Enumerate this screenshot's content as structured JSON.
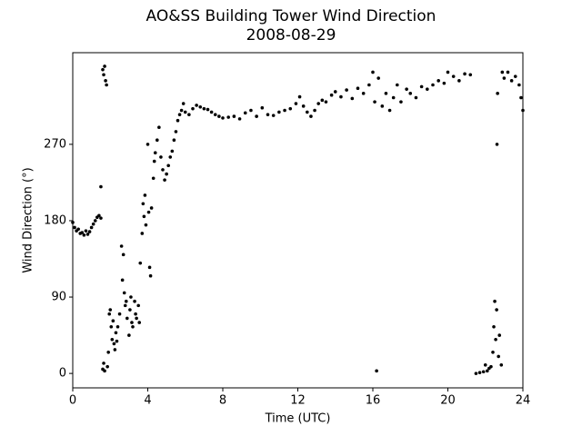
{
  "chart_data": {
    "type": "scatter",
    "title": "AO&SS Building Tower Wind Direction",
    "subtitle": "2008-08-29",
    "x_label": "Time (UTC)",
    "y_label": "Wind Direction (°)",
    "color": "#000000",
    "xlim": [
      0,
      24
    ],
    "xticks": [
      0,
      4,
      8,
      12,
      16,
      20,
      24
    ],
    "ylim": [
      -17,
      378
    ],
    "yticks": [
      0,
      90,
      180,
      270
    ],
    "grid": false,
    "x": [
      0,
      0.1,
      0.2,
      0.3,
      0.4,
      0.5,
      0.6,
      0.7,
      0.8,
      0.9,
      1.0,
      1.1,
      1.2,
      1.3,
      1.4,
      1.5,
      1.5,
      1.6,
      1.65,
      1.7,
      1.75,
      1.8,
      1.6,
      1.65,
      1.7,
      1.85,
      1.9,
      1.95,
      2.0,
      2.05,
      2.1,
      2.15,
      2.2,
      2.25,
      2.3,
      2.35,
      2.4,
      2.5,
      2.6,
      2.65,
      2.7,
      2.75,
      2.8,
      2.85,
      2.9,
      3.0,
      3.05,
      3.1,
      3.15,
      3.2,
      3.3,
      3.35,
      3.4,
      3.5,
      3.55,
      3.6,
      3.7,
      3.75,
      3.8,
      3.85,
      3.9,
      4.0,
      4.05,
      4.1,
      4.15,
      4.2,
      4.3,
      4.35,
      4.4,
      4.5,
      4.6,
      4.7,
      4.8,
      4.9,
      5.0,
      5.1,
      5.2,
      5.3,
      5.4,
      5.5,
      5.6,
      5.7,
      5.8,
      5.9,
      6.0,
      6.2,
      6.4,
      6.6,
      6.8,
      7.0,
      7.2,
      7.4,
      7.6,
      7.8,
      8.0,
      8.3,
      8.6,
      8.9,
      9.2,
      9.5,
      9.8,
      10.1,
      10.4,
      10.7,
      11.0,
      11.3,
      11.6,
      11.9,
      12.1,
      12.3,
      12.5,
      12.7,
      12.9,
      13.1,
      13.3,
      13.5,
      13.8,
      14.0,
      14.3,
      14.6,
      14.9,
      15.2,
      15.5,
      15.8,
      16.0,
      16.1,
      16.2,
      16.3,
      16.5,
      16.7,
      16.9,
      17.1,
      17.3,
      17.5,
      17.8,
      18.0,
      18.3,
      18.6,
      18.9,
      19.2,
      19.5,
      19.8,
      20.0,
      20.3,
      20.6,
      20.9,
      21.2,
      21.5,
      21.7,
      21.9,
      22.0,
      22.1,
      22.2,
      22.3,
      22.4,
      22.45,
      22.5,
      22.55,
      22.6,
      22.62,
      22.65,
      22.7,
      22.75,
      22.85,
      22.9,
      23.0,
      23.2,
      23.4,
      23.6,
      23.8,
      23.9,
      24.0
    ],
    "values": [
      178,
      172,
      168,
      170,
      165,
      166,
      163,
      168,
      164,
      167,
      172,
      176,
      180,
      184,
      186,
      183,
      220,
      358,
      352,
      362,
      345,
      340,
      5,
      12,
      3,
      8,
      25,
      70,
      75,
      55,
      40,
      62,
      35,
      28,
      48,
      38,
      55,
      70,
      150,
      110,
      140,
      95,
      80,
      85,
      65,
      45,
      75,
      90,
      60,
      55,
      85,
      70,
      65,
      80,
      60,
      130,
      165,
      200,
      185,
      210,
      175,
      270,
      190,
      125,
      115,
      195,
      230,
      250,
      260,
      275,
      290,
      255,
      240,
      228,
      235,
      245,
      255,
      262,
      275,
      285,
      298,
      305,
      310,
      318,
      308,
      305,
      312,
      316,
      314,
      312,
      311,
      308,
      305,
      303,
      301,
      302,
      303,
      300,
      307,
      310,
      303,
      313,
      305,
      304,
      308,
      310,
      312,
      318,
      326,
      315,
      308,
      303,
      310,
      318,
      322,
      320,
      328,
      332,
      326,
      334,
      324,
      336,
      330,
      340,
      355,
      320,
      3,
      348,
      315,
      330,
      310,
      325,
      340,
      320,
      335,
      330,
      325,
      338,
      335,
      340,
      345,
      342,
      355,
      350,
      345,
      353,
      352,
      0,
      1,
      2,
      10,
      3,
      6,
      8,
      25,
      55,
      85,
      40,
      75,
      270,
      330,
      20,
      45,
      10,
      355,
      348,
      355,
      345,
      350,
      340,
      325,
      310
    ]
  }
}
